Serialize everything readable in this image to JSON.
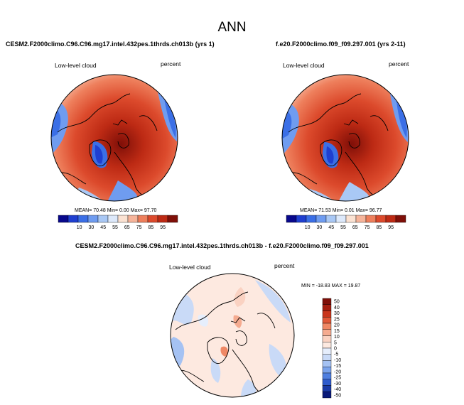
{
  "title": "ANN",
  "panels": [
    {
      "case_title": "CESM2.F2000climo.C96.C96.mg17.intel.432pes.1thrds.ch013b (yrs 1)",
      "variable": "Low-level cloud",
      "units": "percent",
      "stats_text": "MEAN=  70.48  Min=   0.00  Max=  97.70",
      "colorbar_ticks": [
        "10",
        "30",
        "45",
        "55",
        "65",
        "75",
        "85",
        "95"
      ]
    },
    {
      "case_title": "f.e20.F2000climo.f09_f09.297.001 (yrs 2-11)",
      "variable": "Low-level cloud",
      "units": "percent",
      "stats_text": "MEAN=  71.53  Min=   0.01  Max=  96.77",
      "colorbar_ticks": [
        "10",
        "30",
        "45",
        "55",
        "65",
        "75",
        "85",
        "95"
      ]
    }
  ],
  "diff_panel": {
    "case_title": "CESM2.F2000climo.C96.C96.mg17.intel.432pes.1thrds.ch013b - f.e20.F2000climo.f09_f09.297.001",
    "variable": "Low-level cloud",
    "units": "percent",
    "stats_text": "MIN = -18.83 MAX =  19.87",
    "colorbar_ticks": [
      "50",
      "40",
      "30",
      "25",
      "20",
      "15",
      "10",
      "5",
      "0",
      "-5",
      "-10",
      "-15",
      "-20",
      "-25",
      "-30",
      "-40",
      "-50"
    ]
  },
  "colors": {
    "abs_scale": [
      "#08088c",
      "#1f3fd0",
      "#3b6fe6",
      "#6f9cf0",
      "#a9c8f5",
      "#dde9fb",
      "#fbe2d2",
      "#f6b49a",
      "#ee7f5c",
      "#dc4a2c",
      "#bd2a14",
      "#7f0f08"
    ],
    "diff_scale": [
      "#7f0f08",
      "#a51e10",
      "#c9351c",
      "#e05838",
      "#ef8865",
      "#f5ab90",
      "#fad2c2",
      "#fde9e0",
      "#e6eefc",
      "#c9daf7",
      "#a5c2f3",
      "#7aa3ec",
      "#4f7fe0",
      "#2e5bcc",
      "#1a3aa6",
      "#0a1a7a"
    ]
  }
}
